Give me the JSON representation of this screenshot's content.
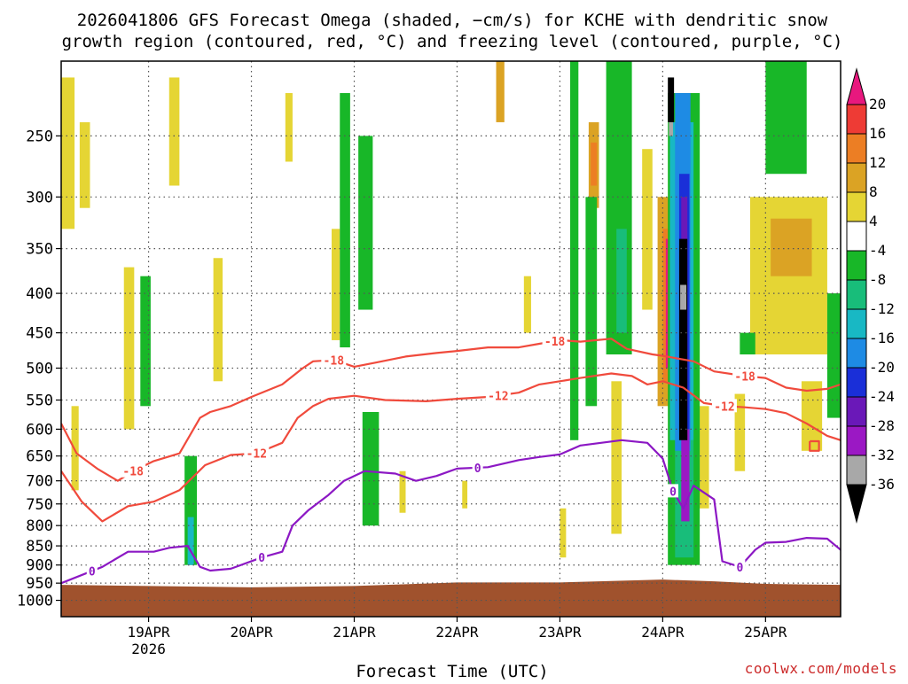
{
  "chart_data": {
    "type": "heatmap",
    "title": "2026041806 GFS Forecast Omega (shaded, −cm/s) for KCHE with dendritic snow growth region (contoured, red, °C) and freezing level (contoured, purple, °C)",
    "title_lines": [
      "2026041806 GFS Forecast Omega (shaded, −cm/s) for KCHE with dendritic snow",
      "growth region (contoured, red, °C) and freezing level (contoured, purple, °C)"
    ],
    "xlabel": "Forecast Time (UTC)",
    "ylabel": "",
    "credit": "coolwx.com/models",
    "x_axis": {
      "units": "days after 2026-04-18 00Z",
      "range": [
        0.15,
        7.73
      ],
      "ticks": [
        {
          "value": 1,
          "label": "19APR",
          "sublabel": "2026"
        },
        {
          "value": 2,
          "label": "20APR"
        },
        {
          "value": 3,
          "label": "21APR"
        },
        {
          "value": 4,
          "label": "22APR"
        },
        {
          "value": 5,
          "label": "23APR"
        },
        {
          "value": 6,
          "label": "24APR"
        },
        {
          "value": 7,
          "label": "25APR"
        }
      ]
    },
    "y_axis": {
      "units": "hPa",
      "scale": "log-pressure",
      "range": [
        1050,
        200
      ],
      "ticks": [
        250,
        300,
        350,
        400,
        450,
        500,
        550,
        600,
        650,
        700,
        750,
        800,
        850,
        900,
        950,
        1000
      ]
    },
    "colorbar": {
      "labels": [
        20,
        16,
        12,
        8,
        4,
        -4,
        -8,
        -12,
        -16,
        -20,
        -24,
        -28,
        -32,
        -36
      ],
      "bins": [
        {
          "from": 20,
          "to": 24,
          "color": "#e8187e"
        },
        {
          "from": 16,
          "to": 20,
          "color": "#ee3b35"
        },
        {
          "from": 12,
          "to": 16,
          "color": "#ec7e24"
        },
        {
          "from": 8,
          "to": 12,
          "color": "#dba324"
        },
        {
          "from": 4,
          "to": 8,
          "color": "#e5d534"
        },
        {
          "from": -4,
          "to": 4,
          "color": "#ffffff"
        },
        {
          "from": -8,
          "to": -4,
          "color": "#18b728"
        },
        {
          "from": -12,
          "to": -8,
          "color": "#18bd7a"
        },
        {
          "from": -16,
          "to": -12,
          "color": "#18b8c4"
        },
        {
          "from": -20,
          "to": -16,
          "color": "#1e8be4"
        },
        {
          "from": -24,
          "to": -20,
          "color": "#1a2fd8"
        },
        {
          "from": -28,
          "to": -24,
          "color": "#6a18b8"
        },
        {
          "from": -32,
          "to": -28,
          "color": "#9b18c4"
        },
        {
          "from": -36,
          "to": -32,
          "color": "#a8a8a8"
        },
        {
          "from": -40,
          "to": -36,
          "color": "#000000"
        }
      ]
    },
    "colors": {
      "ground": "#a0522d",
      "dgz_contour": "#f04a3c",
      "freezing_contour": "#8c18c4",
      "grid": "#555555",
      "credit": "#cc2a2a"
    },
    "omega_regions": [
      {
        "value": 6,
        "t0": 0.15,
        "t1": 0.28,
        "p0": 210,
        "p1": 330
      },
      {
        "value": 6,
        "t0": 0.33,
        "t1": 0.43,
        "p0": 240,
        "p1": 310
      },
      {
        "value": 6,
        "t0": 0.25,
        "t1": 0.32,
        "p0": 560,
        "p1": 720
      },
      {
        "value": 6,
        "t0": 0.76,
        "t1": 0.86,
        "p0": 370,
        "p1": 600
      },
      {
        "value": 6,
        "t0": 1.2,
        "t1": 1.3,
        "p0": 210,
        "p1": 290
      },
      {
        "value": 6,
        "t0": 1.63,
        "t1": 1.72,
        "p0": 360,
        "p1": 520
      },
      {
        "value": 6,
        "t0": 2.33,
        "t1": 2.4,
        "p0": 220,
        "p1": 270
      },
      {
        "value": 6,
        "t0": 2.78,
        "t1": 2.86,
        "p0": 330,
        "p1": 460
      },
      {
        "value": 6,
        "t0": 3.44,
        "t1": 3.5,
        "p0": 680,
        "p1": 770
      },
      {
        "value": 6,
        "t0": 4.05,
        "t1": 4.1,
        "p0": 700,
        "p1": 760
      },
      {
        "value": 6,
        "t0": 4.65,
        "t1": 4.72,
        "p0": 380,
        "p1": 450
      },
      {
        "value": 6,
        "t0": 5.0,
        "t1": 5.06,
        "p0": 760,
        "p1": 880
      },
      {
        "value": 6,
        "t0": 5.5,
        "t1": 5.6,
        "p0": 520,
        "p1": 820
      },
      {
        "value": 6,
        "t0": 5.8,
        "t1": 5.9,
        "p0": 260,
        "p1": 420
      },
      {
        "value": 6,
        "t0": 6.35,
        "t1": 6.45,
        "p0": 560,
        "p1": 760
      },
      {
        "value": 6,
        "t0": 6.7,
        "t1": 6.8,
        "p0": 540,
        "p1": 680
      },
      {
        "value": 6,
        "t0": 6.85,
        "t1": 7.6,
        "p0": 300,
        "p1": 480
      },
      {
        "value": 6,
        "t0": 7.35,
        "t1": 7.55,
        "p0": 520,
        "p1": 640
      },
      {
        "value": 10,
        "t0": 7.05,
        "t1": 7.45,
        "p0": 320,
        "p1": 380
      },
      {
        "value": 10,
        "t0": 4.38,
        "t1": 4.46,
        "p0": 200,
        "p1": 240
      },
      {
        "value": 10,
        "t0": 5.28,
        "t1": 5.38,
        "p0": 240,
        "p1": 310
      },
      {
        "value": 10,
        "t0": 5.95,
        "t1": 6.08,
        "p0": 300,
        "p1": 560
      },
      {
        "value": 14,
        "t0": 5.3,
        "t1": 5.36,
        "p0": 255,
        "p1": 290
      },
      {
        "value": 14,
        "t0": 6.0,
        "t1": 6.08,
        "p0": 330,
        "p1": 520
      },
      {
        "value": 22,
        "t0": 6.03,
        "t1": 6.12,
        "p0": 340,
        "p1": 500
      },
      {
        "value": -6,
        "t0": 0.92,
        "t1": 1.02,
        "p0": 380,
        "p1": 560
      },
      {
        "value": -6,
        "t0": 1.35,
        "t1": 1.47,
        "p0": 650,
        "p1": 900
      },
      {
        "value": -6,
        "t0": 2.86,
        "t1": 2.96,
        "p0": 220,
        "p1": 470
      },
      {
        "value": -6,
        "t0": 3.04,
        "t1": 3.18,
        "p0": 250,
        "p1": 420
      },
      {
        "value": -6,
        "t0": 3.08,
        "t1": 3.24,
        "p0": 570,
        "p1": 800
      },
      {
        "value": -6,
        "t0": 5.1,
        "t1": 5.18,
        "p0": 200,
        "p1": 620
      },
      {
        "value": -6,
        "t0": 5.25,
        "t1": 5.36,
        "p0": 300,
        "p1": 560
      },
      {
        "value": -6,
        "t0": 5.45,
        "t1": 5.7,
        "p0": 200,
        "p1": 480
      },
      {
        "value": -6,
        "t0": 6.05,
        "t1": 6.36,
        "p0": 220,
        "p1": 900
      },
      {
        "value": -6,
        "t0": 7.0,
        "t1": 7.4,
        "p0": 200,
        "p1": 280
      },
      {
        "value": -6,
        "t0": 7.6,
        "t1": 7.73,
        "p0": 400,
        "p1": 580
      },
      {
        "value": -6,
        "t0": 6.75,
        "t1": 6.9,
        "p0": 450,
        "p1": 480
      },
      {
        "value": -10,
        "t0": 5.55,
        "t1": 5.65,
        "p0": 330,
        "p1": 450
      },
      {
        "value": -10,
        "t0": 6.12,
        "t1": 6.3,
        "p0": 620,
        "p1": 880
      },
      {
        "value": -14,
        "t0": 6.07,
        "t1": 6.3,
        "p0": 240,
        "p1": 620
      },
      {
        "value": -14,
        "t0": 1.38,
        "t1": 1.44,
        "p0": 780,
        "p1": 900
      },
      {
        "value": -18,
        "t0": 6.12,
        "t1": 6.27,
        "p0": 220,
        "p1": 640
      },
      {
        "value": -22,
        "t0": 6.16,
        "t1": 6.26,
        "p0": 280,
        "p1": 600
      },
      {
        "value": -26,
        "t0": 6.18,
        "t1": 6.24,
        "p0": 300,
        "p1": 560
      },
      {
        "value": -30,
        "t0": 6.18,
        "t1": 6.26,
        "p0": 600,
        "p1": 790
      },
      {
        "value": -38,
        "t0": 6.16,
        "t1": 6.24,
        "p0": 340,
        "p1": 620
      },
      {
        "value": -34,
        "t0": 6.17,
        "t1": 6.23,
        "p0": 390,
        "p1": 420
      },
      {
        "value": -38,
        "t0": 6.05,
        "t1": 6.11,
        "p0": 210,
        "p1": 240
      },
      {
        "value": -34,
        "t0": 6.06,
        "t1": 6.1,
        "p0": 240,
        "p1": 250
      }
    ],
    "ground": {
      "t": [
        0.15,
        1.0,
        2.0,
        3.0,
        4.0,
        5.0,
        6.0,
        6.5,
        7.0,
        7.73
      ],
      "p": [
        955,
        958,
        962,
        958,
        948,
        948,
        940,
        945,
        952,
        955
      ]
    },
    "contours": [
      {
        "name": "dgz-minus12",
        "level": -12,
        "t": [
          0.15,
          0.35,
          0.55,
          0.8,
          1.05,
          1.3,
          1.55,
          1.8,
          2.05,
          2.3,
          2.45,
          2.6,
          2.75,
          3.0,
          3.3,
          3.7,
          4.0,
          4.3,
          4.6,
          4.8,
          5.0,
          5.2,
          5.5,
          5.7,
          5.85,
          6.0,
          6.2,
          6.4,
          6.6,
          6.8,
          7.0,
          7.2,
          7.4,
          7.6,
          7.73
        ],
        "p": [
          680,
          745,
          790,
          755,
          745,
          720,
          668,
          648,
          645,
          625,
          580,
          560,
          548,
          543,
          550,
          552,
          548,
          545,
          538,
          525,
          520,
          515,
          508,
          512,
          525,
          520,
          530,
          555,
          560,
          562,
          565,
          572,
          590,
          612,
          620
        ],
        "labels": [
          {
            "text": "-12",
            "t": 2.05
          },
          {
            "text": "-12",
            "t": 4.4
          },
          {
            "text": "-12",
            "t": 6.6
          }
        ]
      },
      {
        "name": "dgz-minus18",
        "level": -18,
        "t": [
          0.15,
          0.3,
          0.5,
          0.7,
          0.85,
          1.05,
          1.3,
          1.5,
          1.6,
          1.8,
          2.0,
          2.3,
          2.5,
          2.6,
          2.8,
          3.0,
          3.2,
          3.5,
          3.8,
          4.0,
          4.3,
          4.6,
          4.8,
          5.0,
          5.2,
          5.5,
          5.65,
          5.9,
          6.0,
          6.3,
          6.5,
          6.8,
          7.0,
          7.2,
          7.4,
          7.6,
          7.73
        ],
        "p": [
          590,
          645,
          675,
          700,
          680,
          660,
          645,
          580,
          570,
          560,
          545,
          525,
          500,
          490,
          488,
          498,
          492,
          483,
          478,
          475,
          470,
          470,
          465,
          460,
          462,
          458,
          472,
          480,
          482,
          490,
          505,
          512,
          515,
          530,
          535,
          532,
          525
        ],
        "labels": [
          {
            "text": "-18",
            "t": 0.85
          },
          {
            "text": "-18",
            "t": 2.8
          },
          {
            "text": "-18",
            "t": 4.95
          },
          {
            "text": "-18",
            "t": 6.8
          }
        ]
      },
      {
        "name": "freezing-level",
        "level": 0,
        "t": [
          0.15,
          0.55,
          0.8,
          1.05,
          1.2,
          1.38,
          1.5,
          1.6,
          1.8,
          2.1,
          2.3,
          2.4,
          2.55,
          2.75,
          2.9,
          3.1,
          3.4,
          3.6,
          3.8,
          4.0,
          4.3,
          4.6,
          4.8,
          5.0,
          5.2,
          5.4,
          5.6,
          5.85,
          6.0,
          6.1,
          6.2,
          6.3,
          6.5,
          6.58,
          6.75,
          6.9,
          7.0,
          7.2,
          7.4,
          7.6,
          7.73
        ],
        "p": [
          950,
          905,
          865,
          865,
          855,
          850,
          905,
          915,
          910,
          880,
          865,
          800,
          765,
          730,
          700,
          680,
          685,
          700,
          690,
          675,
          672,
          658,
          652,
          647,
          630,
          625,
          620,
          625,
          655,
          722,
          760,
          710,
          740,
          890,
          905,
          860,
          842,
          840,
          830,
          832,
          860
        ],
        "labels": [
          {
            "text": "0",
            "t": 0.45
          },
          {
            "text": "0",
            "t": 2.1
          },
          {
            "text": "0",
            "t": 4.2
          },
          {
            "text": "0",
            "t": 6.1
          },
          {
            "text": "0",
            "t": 6.75
          }
        ]
      },
      {
        "name": "dgz-minus18-closed-box",
        "level": -18,
        "t": [
          7.43,
          7.52,
          7.52,
          7.43,
          7.43
        ],
        "p": [
          622,
          622,
          640,
          640,
          622
        ],
        "labels": []
      }
    ]
  }
}
